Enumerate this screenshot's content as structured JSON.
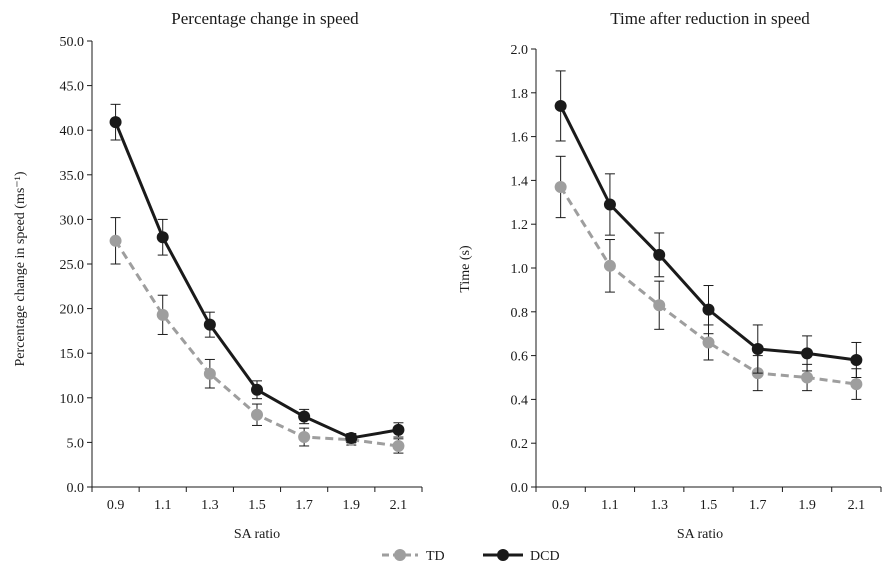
{
  "chart_data": [
    {
      "type": "line",
      "title": "Percentage change in speed",
      "xlabel": "SA ratio",
      "ylabel": "Percentage change in speed (ms⁻¹)",
      "categories": [
        "0.9",
        "1.1",
        "1.3",
        "1.5",
        "1.7",
        "1.9",
        "2.1"
      ],
      "ylim": [
        0,
        50
      ],
      "yticks": [
        "0.0",
        "5.0",
        "10.0",
        "15.0",
        "20.0",
        "25.0",
        "30.0",
        "35.0",
        "40.0",
        "45.0",
        "50.0"
      ],
      "series": [
        {
          "name": "TD",
          "style": "dashed",
          "color": "#9e9e9e",
          "values": [
            27.6,
            19.3,
            12.7,
            8.1,
            5.6,
            5.3,
            4.6
          ],
          "errors": [
            2.6,
            2.2,
            1.6,
            1.2,
            1.0,
            0.6,
            0.8
          ]
        },
        {
          "name": "DCD",
          "style": "solid",
          "color": "#1a1a1a",
          "values": [
            40.9,
            28.0,
            18.2,
            10.9,
            7.9,
            5.5,
            6.4
          ],
          "errors": [
            2.0,
            2.0,
            1.4,
            1.0,
            0.8,
            0.5,
            0.8
          ]
        }
      ]
    },
    {
      "type": "line",
      "title": "Time after reduction in speed",
      "xlabel": "SA ratio",
      "ylabel": "Time (s)",
      "categories": [
        "0.9",
        "1.1",
        "1.3",
        "1.5",
        "1.7",
        "1.9",
        "2.1"
      ],
      "ylim": [
        0,
        2
      ],
      "yticks": [
        "0.0",
        "0.2",
        "0.4",
        "0.6",
        "0.8",
        "1.0",
        "1.2",
        "1.4",
        "1.6",
        "1.8",
        "2.0"
      ],
      "series": [
        {
          "name": "TD",
          "style": "dashed",
          "color": "#9e9e9e",
          "values": [
            1.37,
            1.01,
            0.83,
            0.66,
            0.52,
            0.5,
            0.47
          ],
          "errors": [
            0.14,
            0.12,
            0.11,
            0.08,
            0.08,
            0.06,
            0.07
          ]
        },
        {
          "name": "DCD",
          "style": "solid",
          "color": "#1a1a1a",
          "values": [
            1.74,
            1.29,
            1.06,
            0.81,
            0.63,
            0.61,
            0.58
          ],
          "errors": [
            0.16,
            0.14,
            0.1,
            0.11,
            0.11,
            0.08,
            0.08
          ]
        }
      ]
    }
  ],
  "legend": {
    "items": [
      {
        "label": "TD",
        "color": "#9e9e9e",
        "style": "dashed"
      },
      {
        "label": "DCD",
        "color": "#1a1a1a",
        "style": "solid"
      }
    ]
  }
}
